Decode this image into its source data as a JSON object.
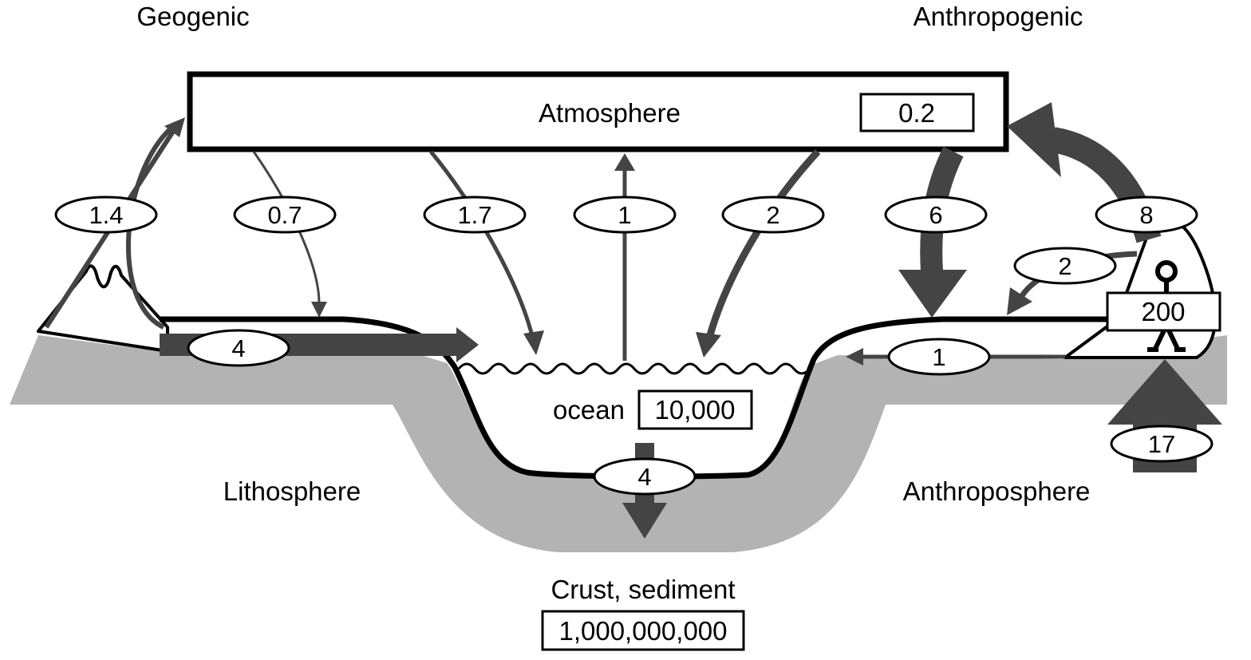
{
  "headings": {
    "geogenic": "Geogenic",
    "anthropogenic": "Anthropogenic"
  },
  "atmosphere": {
    "label": "Atmosphere",
    "stock": "0.2"
  },
  "ocean": {
    "label": "ocean",
    "stock": "10,000"
  },
  "crust": {
    "label": "Crust, sediment",
    "stock": "1,000,000,000"
  },
  "anthroposphere": {
    "label": "Anthroposphere",
    "stock": "200"
  },
  "lithosphere": {
    "label": "Lithosphere"
  },
  "flows": {
    "volcano_to_atmosphere": "1.4",
    "atmosphere_to_land": "0.7",
    "atmosphere_to_ocean_a": "1.7",
    "ocean_to_atmosphere": "1",
    "atmosphere_to_ocean_b": "2",
    "atmosphere_to_land_right": "6",
    "anthroposphere_to_atmosphere": "8",
    "anthroposphere_to_land": "2",
    "anthroposphere_to_ocean": "1",
    "land_runoff_to_ocean": "4",
    "ocean_to_sediment": "4",
    "mining_to_anthroposphere": "17"
  }
}
